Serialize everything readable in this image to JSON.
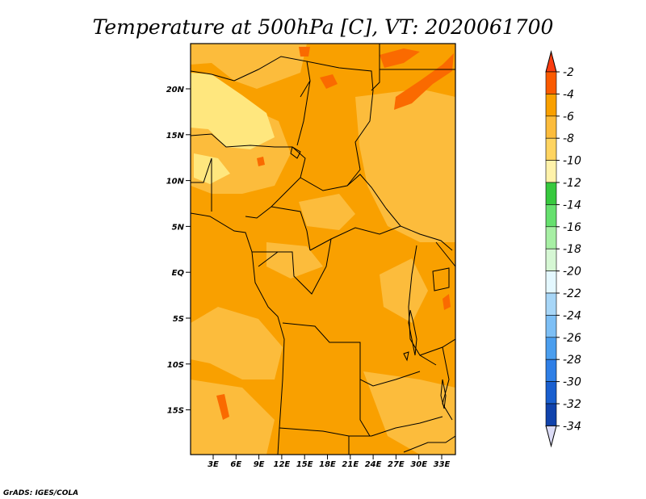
{
  "title": "Temperature at 500hPa [C], VT: 2020061700",
  "credit": "GrADS: IGES/COLA",
  "map": {
    "lat_labels": [
      "20N",
      "15N",
      "10N",
      "5N",
      "EQ",
      "5S",
      "10S",
      "15S"
    ],
    "lon_labels": [
      "3E",
      "6E",
      "9E",
      "12E",
      "15E",
      "18E",
      "21E",
      "24E",
      "27E",
      "30E",
      "33E"
    ],
    "colors": {
      "background_field": "#f9a000",
      "lighter_field": "#fcbc3c",
      "pale_field": "#ffe77e",
      "warm_patch": "#fa6a00"
    }
  },
  "colorbar": {
    "labels": [
      "-2",
      "-4",
      "-6",
      "-8",
      "-10",
      "-12",
      "-14",
      "-16",
      "-18",
      "-20",
      "-22",
      "-24",
      "-26",
      "-28",
      "-30",
      "-32",
      "-34"
    ],
    "colors": [
      "#fa5a00",
      "#f9a000",
      "#fcbc3c",
      "#ffd460",
      "#fff2aa",
      "#37c93e",
      "#66e06e",
      "#a7efa4",
      "#d6f7d4",
      "#e4f8ff",
      "#a7d6f7",
      "#7dbff5",
      "#4b9eee",
      "#2f7fe6",
      "#1a5fcf",
      "#1143ac",
      "#0c1a7a"
    ],
    "top_triangle_color": "#fa3c10",
    "bottom_triangle_color": "#dcdcf6"
  }
}
